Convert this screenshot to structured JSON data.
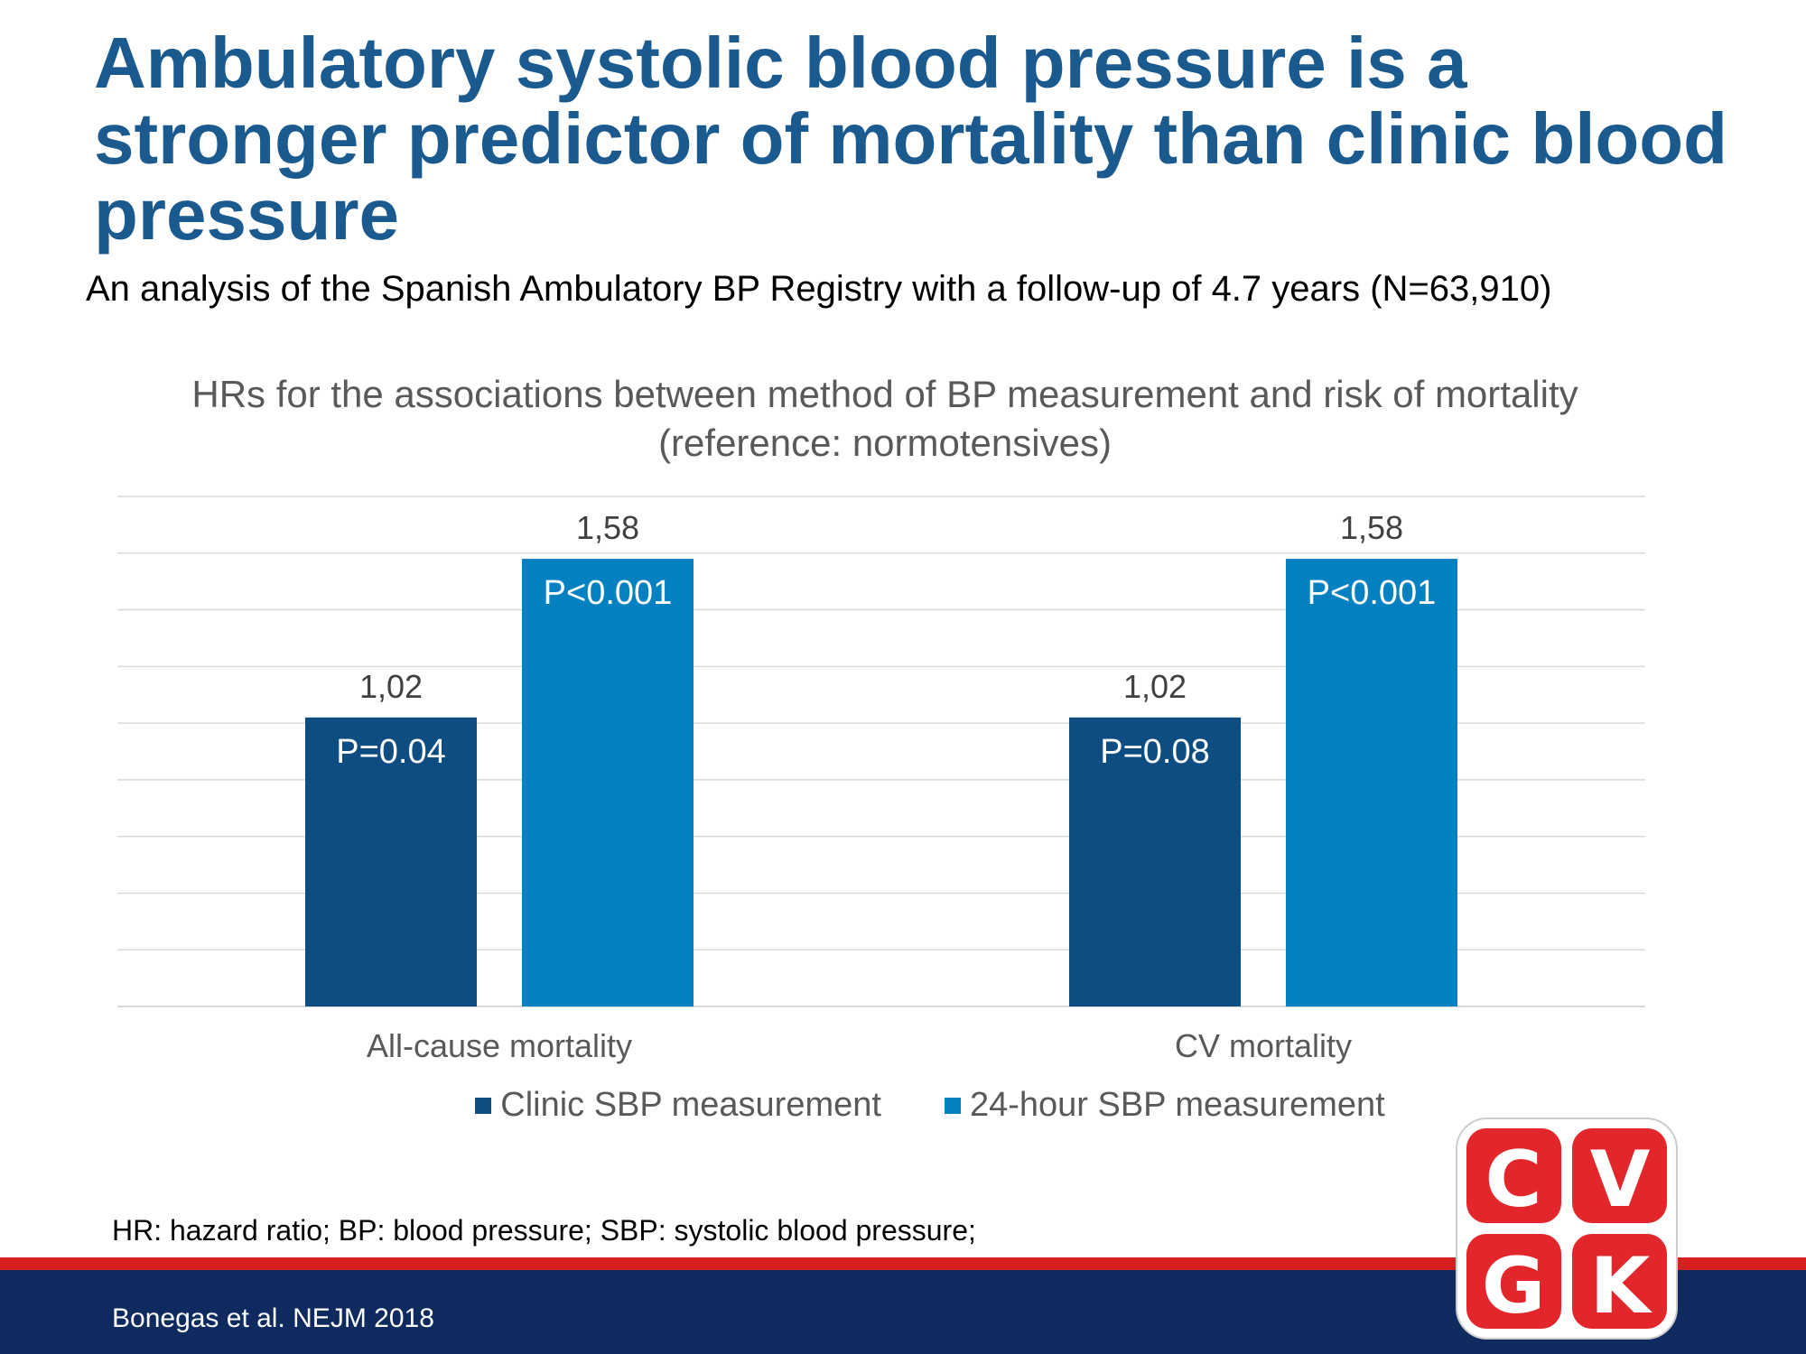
{
  "slide": {
    "title": "Ambulatory systolic blood pressure is a stronger predictor of mortality than clinic blood pressure",
    "subtitle": "An analysis of the Spanish Ambulatory BP Registry with a follow-up of 4.7 years (N=63,910)",
    "footnote": "HR: hazard ratio; BP: blood pressure; SBP: systolic blood pressure;",
    "citation": "Bonegas et al. NEJM 2018"
  },
  "colors": {
    "title": "#1b5a8f",
    "clinic_bar": "#0e4d82",
    "ambulatory_bar": "#0580c0",
    "gridline": "#d9d9d9",
    "axis_text": "#595959",
    "red_band": "#d81e1e",
    "footer_bar": "#0e2a5e",
    "logo_red": "#e3262c"
  },
  "logo": {
    "letters": [
      "C",
      "V",
      "G",
      "K"
    ]
  },
  "chart_data": {
    "type": "bar",
    "title": "HRs for the associations between method of BP measurement and risk of mortality (reference: normotensives)",
    "categories": [
      "All-cause mortality",
      "CV mortality"
    ],
    "series": [
      {
        "name": "Clinic SBP measurement",
        "values": [
          1.02,
          1.02
        ],
        "value_labels": [
          "1,02",
          "1,02"
        ],
        "p_values": [
          "P=0.04",
          "P=0.08"
        ]
      },
      {
        "name": "24-hour SBP measurement",
        "values": [
          1.58,
          1.58
        ],
        "value_labels": [
          "1,58",
          "1,58"
        ],
        "p_values": [
          "P<0.001",
          "P<0.001"
        ]
      }
    ],
    "ylim": [
      0,
      1.8
    ],
    "grid": true,
    "legend": "bottom"
  }
}
